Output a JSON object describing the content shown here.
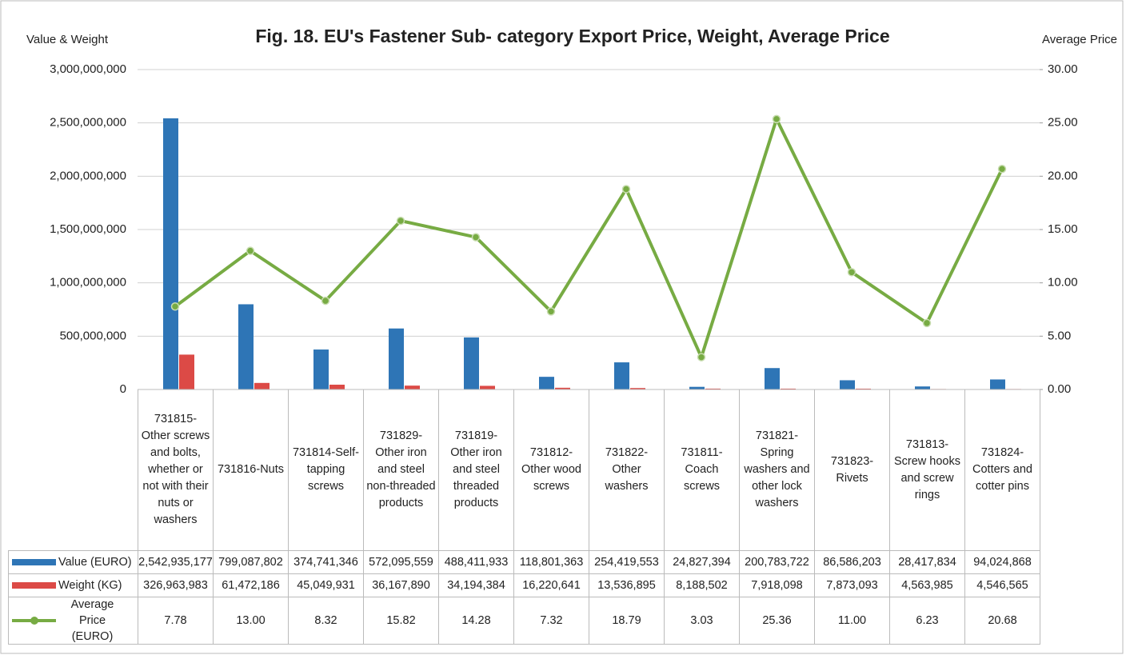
{
  "chart_data": {
    "type": "bar_line_table",
    "title": "Fig. 18. EU's Fastener Sub- category Export Price, Weight, Average Price",
    "y_label": "Value & Weight",
    "y2_label": "Average Price",
    "categories": [
      "731815-Other screws and bolts, whether or not with their nuts or washers",
      "731816-Nuts",
      "731814-Self-tapping screws",
      "731829-Other iron and steel non-threaded products",
      "731819-Other iron and steel threaded products",
      "731812-Other wood screws",
      "731822-Other washers",
      "731811-Coach screws",
      "731821-Spring washers and other lock washers",
      "731823-Rivets",
      "731813-Screw hooks and screw rings",
      "731824-Cotters and cotter pins"
    ],
    "series": [
      {
        "name": "Value (EURO)",
        "color": "#2e75b6",
        "type": "bar",
        "values": [
          2542935177,
          799087802,
          374741346,
          572095559,
          488411933,
          118801363,
          254419553,
          24827394,
          200783722,
          86586203,
          28417834,
          94024868
        ],
        "value_labels": [
          "2,542,935,177",
          "799,087,802",
          "374,741,346",
          "572,095,559",
          "488,411,933",
          "118,801,363",
          "254,419,553",
          "24,827,394",
          "200,783,722",
          "86,586,203",
          "28,417,834",
          "94,024,868"
        ]
      },
      {
        "name": "Weight (KG)",
        "color": "#dc4a46",
        "type": "bar",
        "values": [
          326963983,
          61472186,
          45049931,
          36167890,
          34194384,
          16220641,
          13536895,
          8188502,
          7918098,
          7873093,
          4563985,
          4546565
        ],
        "value_labels": [
          "326,963,983",
          "61,472,186",
          "45,049,931",
          "36,167,890",
          "34,194,384",
          "16,220,641",
          "13,536,895",
          "8,188,502",
          "7,918,098",
          "7,873,093",
          "4,563,985",
          "4,546,565"
        ]
      },
      {
        "name": "Average Price (EURO)",
        "color": "#77ab43",
        "type": "line",
        "axis": "y2",
        "values": [
          7.78,
          13,
          8.32,
          15.82,
          14.28,
          7.32,
          18.79,
          3.03,
          25.36,
          11,
          6.23,
          20.68
        ],
        "value_labels": [
          "7.78",
          "13.00",
          "8.32",
          "15.82",
          "14.28",
          "7.32",
          "18.79",
          "3.03",
          "25.36",
          "11.00",
          "6.23",
          "20.68"
        ]
      }
    ],
    "ylim": [
      0,
      3000000000
    ],
    "yticks": [
      0,
      {
        "value": 500000000,
        "label": "500,000,000"
      },
      {
        "value": 1000000000,
        "label": "1,000,000,000"
      },
      {
        "value": 1500000000,
        "label": "1,500,000,000"
      },
      {
        "value": 2000000000,
        "label": "2,000,000,000"
      },
      {
        "value": 2500000000,
        "label": "2,500,000,000"
      },
      {
        "value": 3000000000,
        "label": "3,000,000,000"
      }
    ],
    "y2lim": [
      0,
      30
    ],
    "y2ticks": [
      {
        "value": 0,
        "label": "0.00"
      },
      {
        "value": 5,
        "label": "5.00"
      },
      {
        "value": 10,
        "label": "10.00"
      },
      {
        "value": 15,
        "label": "15.00"
      },
      {
        "value": 20,
        "label": "20.00"
      },
      {
        "value": 25,
        "label": "25.00"
      },
      {
        "value": 30,
        "label": "30.00"
      }
    ],
    "grid": true
  }
}
